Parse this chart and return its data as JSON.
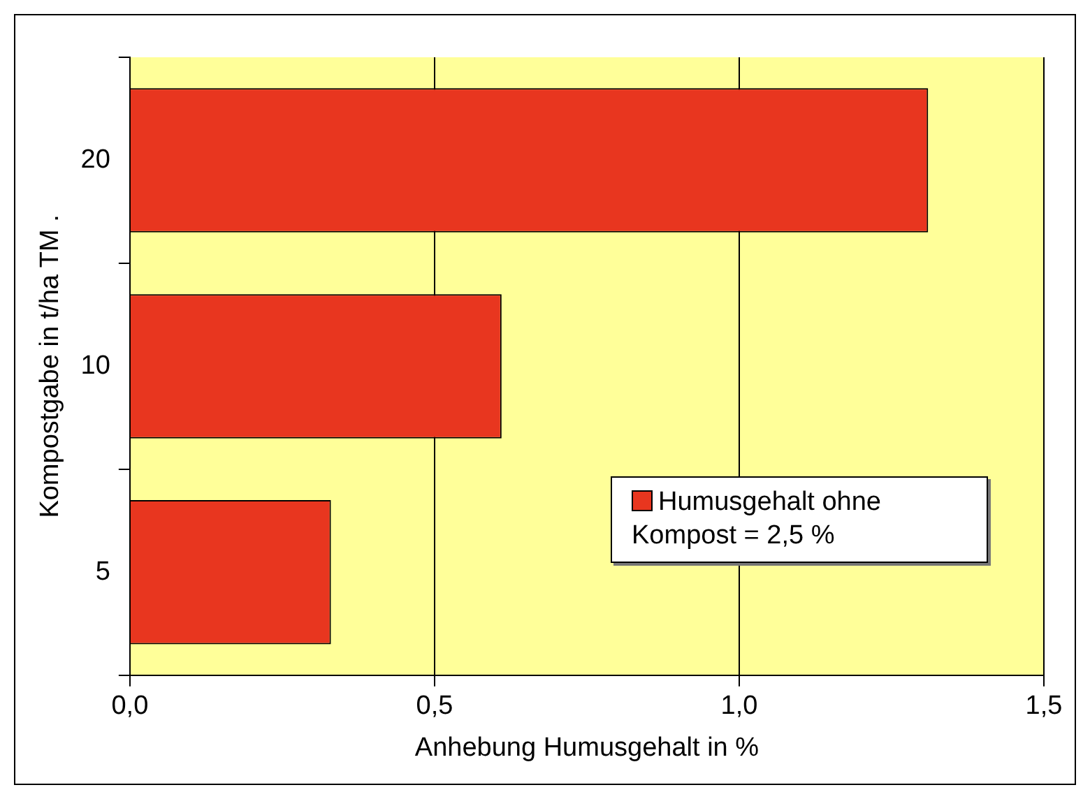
{
  "chart_data": {
    "type": "bar",
    "orientation": "horizontal",
    "xlabel": "Anhebung Humusgehalt in %",
    "ylabel": "Kompostgabe in t/ha TM .",
    "categories": [
      "20",
      "10",
      "5"
    ],
    "series": [
      {
        "name": "Humusgehalt ohne Kompost = 2,5 %",
        "color": "#e8361f",
        "values": [
          1.31,
          0.61,
          0.33
        ]
      }
    ],
    "xlim": [
      0,
      1.5
    ],
    "xticks": [
      {
        "value": 0,
        "label": "0,0"
      },
      {
        "value": 0.5,
        "label": "0,5"
      },
      {
        "value": 1,
        "label": "1,0"
      },
      {
        "value": 1.5,
        "label": "1,5"
      }
    ],
    "grid": "x",
    "legend": "bottom right"
  }
}
